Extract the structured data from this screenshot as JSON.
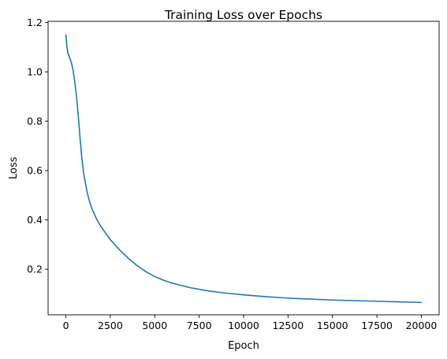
{
  "chart_data": {
    "type": "line",
    "title": "Training Loss over Epochs",
    "xlabel": "Epoch",
    "ylabel": "Loss",
    "xlim": [
      -1000,
      21000
    ],
    "ylim": [
      0.015,
      1.205
    ],
    "xticks": [
      0,
      2500,
      5000,
      7500,
      10000,
      12500,
      15000,
      17500,
      20000
    ],
    "xtick_labels": [
      "0",
      "2500",
      "5000",
      "7500",
      "10000",
      "12500",
      "15000",
      "17500",
      "20000"
    ],
    "yticks": [
      0.2,
      0.4,
      0.6,
      0.8,
      1.0,
      1.2
    ],
    "ytick_labels": [
      "0.2",
      "0.4",
      "0.6",
      "0.8",
      "1.0",
      "1.2"
    ],
    "grid": false,
    "line_color": "#1f77b4",
    "series": [
      {
        "x": [
          0,
          50,
          100,
          200,
          300,
          400,
          500,
          600,
          700,
          800,
          900,
          1000,
          1100,
          1200,
          1350,
          1500,
          1750,
          2000,
          2500,
          3000,
          3500,
          4000,
          4500,
          5000,
          5500,
          6000,
          7000,
          8000,
          9000,
          10000,
          11000,
          12000,
          13000,
          14000,
          15000,
          16000,
          17000,
          18000,
          19000,
          20000
        ],
        "y": [
          1.15,
          1.11,
          1.08,
          1.06,
          1.04,
          1.01,
          0.96,
          0.9,
          0.82,
          0.73,
          0.65,
          0.59,
          0.55,
          0.51,
          0.47,
          0.44,
          0.4,
          0.37,
          0.32,
          0.28,
          0.245,
          0.215,
          0.19,
          0.17,
          0.155,
          0.143,
          0.125,
          0.112,
          0.103,
          0.096,
          0.09,
          0.085,
          0.081,
          0.078,
          0.075,
          0.073,
          0.071,
          0.069,
          0.067,
          0.065
        ]
      }
    ]
  }
}
